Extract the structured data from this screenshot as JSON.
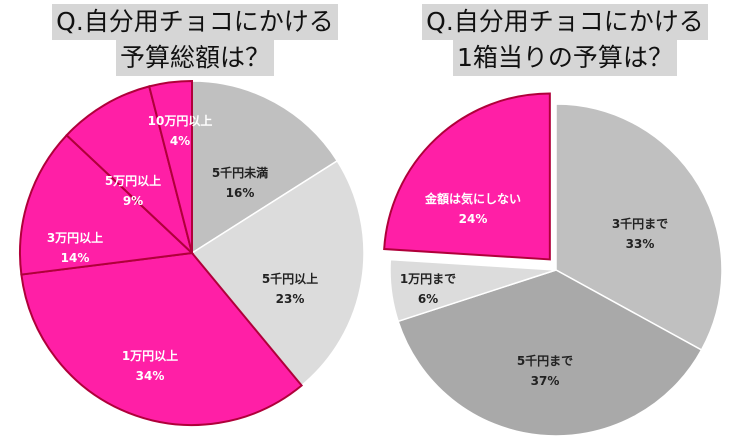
{
  "titles": {
    "left_line1": "Q.自分用チョコにかける",
    "left_line2": "予算総額は？",
    "right_line1": "Q.自分用チョコにかける",
    "right_line2": "1箱当りの予算は？"
  },
  "chart_data": [
    {
      "type": "pie",
      "title": "Q.自分用チョコにかける予算総額は？",
      "slices": [
        {
          "label": "5千円未満",
          "value": 16,
          "value_label": "16%",
          "color": "#c0c0c0",
          "text_color": "#222222"
        },
        {
          "label": "5千円以上",
          "value": 23,
          "value_label": "23%",
          "color": "#dcdcdc",
          "text_color": "#222222"
        },
        {
          "label": "1万円以上",
          "value": 34,
          "value_label": "34%",
          "color": "#ff1fa6",
          "text_color": "#ffffff"
        },
        {
          "label": "3万円以上",
          "value": 14,
          "value_label": "14%",
          "color": "#ff1fa6",
          "text_color": "#ffffff"
        },
        {
          "label": "5万円以上",
          "value": 9,
          "value_label": "9%",
          "color": "#ff1fa6",
          "text_color": "#ffffff"
        },
        {
          "label": "10万円以上",
          "value": 4,
          "value_label": "4%",
          "color": "#ff1fa6",
          "text_color": "#ffffff"
        }
      ]
    },
    {
      "type": "pie",
      "title": "Q.自分用チョコにかける1箱当りの予算は？",
      "slices": [
        {
          "label": "3千円まで",
          "value": 33,
          "value_label": "33%",
          "color": "#c0c0c0",
          "text_color": "#222222"
        },
        {
          "label": "5千円まで",
          "value": 37,
          "value_label": "37%",
          "color": "#a9a9a9",
          "text_color": "#222222"
        },
        {
          "label": "1万円まで",
          "value": 6,
          "value_label": "6%",
          "color": "#dcdcdc",
          "text_color": "#222222"
        },
        {
          "label": "金額は気にしない",
          "value": 24,
          "value_label": "24%",
          "color": "#ff1fa6",
          "text_color": "#ffffff"
        }
      ]
    }
  ]
}
